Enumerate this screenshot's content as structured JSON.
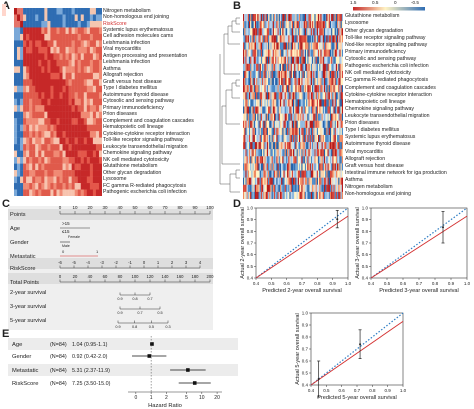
{
  "panels": {
    "A": {
      "letter": "A",
      "rows": [
        "Nitrogen metabolism",
        "Non-homologous end joining",
        "RiskScore",
        "Systemic lupus erythematosus",
        "Cell adhesion molecules cams",
        "Leishmania infection",
        "Viral myocarditis",
        "Antigen processing and presentation",
        "Leishmania infection",
        "Asthma",
        "Allograft rejection",
        "Graft versus host disease",
        "Type I diabetes mellitus",
        "Autoimmune thyroid disease",
        "Cytosolic and sensing pathway",
        "Primary immunodeficiency",
        "Prion diseases",
        "Complement and coagulation cascades",
        "Hematopoietic cell lineage",
        "Cytokine-cytokine receptor interaction",
        "Toll-like receptor signaling pathway",
        "Leukocyte transendothelial migration",
        "Chemokine signaling pathway",
        "NK cell mediated cytotoxicity",
        "Glutathione metabolism",
        "Other glycan degradation",
        "Lysosome",
        "FC gamma R-rediated phagocytosis",
        "Pathogenic escherichia coli infection"
      ],
      "highlight_row": "RiskScore",
      "colors": {
        "high": "#c62828",
        "low": "#1f5fa8",
        "mid": "#fbe3d4",
        "highlight": "#d32f2f"
      }
    },
    "B": {
      "letter": "B",
      "legend_ticks": [
        "1.5",
        "0.5",
        "0",
        "-0.5"
      ],
      "rows": [
        "Glutathione metabolism",
        "Lysosome",
        "Other glycan degradation",
        "Toll-like receptor signaling pathway",
        "Nod-like receptor signaling pathway",
        "Primary immunodeficiency",
        "Cytosolic and sensing pathway",
        "Pathogenic escherichia coli infection",
        "NK cell mediated cytotoxicity",
        "FC gamma R-rediated phagocytosis",
        "Complement and coagulation cascades",
        "Cytokine-cytokine receptor interaction",
        "Hematopoietic cell lineage",
        "Chemokine signaling pathway",
        "Leukocyte transendothelial migration",
        "Prion diseases",
        "Type I diabetes mellitus",
        "Systemic lupus erythematosus",
        "Autoimmune thyroid disease",
        "Viral myocarditis",
        "Allograft rejection",
        "Graft versus host disease",
        "Intestinal immune network for iga production",
        "Asthma",
        "Nitrogen metabolism",
        "Non-homologous end joining"
      ]
    },
    "C": {
      "letter": "C",
      "rows": [
        {
          "label": "Points",
          "ticks": [
            "0",
            "10",
            "20",
            "30",
            "40",
            "50",
            "60",
            "70",
            "80",
            "90",
            "100"
          ]
        },
        {
          "label": "Age",
          "ticks": [
            ">15",
            "≤15"
          ]
        },
        {
          "label": "Gender",
          "ticks": [
            "Female",
            "Male"
          ]
        },
        {
          "label": "Metastatic",
          "ticks": [
            "1",
            "0"
          ]
        },
        {
          "label": "RiskScore",
          "ticks": [
            "-6",
            "-5",
            "-4",
            "-3",
            "-2",
            "-1",
            "0",
            "1",
            "2",
            "3",
            "4"
          ]
        },
        {
          "label": "Total Points",
          "ticks": [
            "0",
            "20",
            "40",
            "60",
            "80",
            "100",
            "120",
            "140",
            "160",
            "180",
            "200"
          ]
        },
        {
          "label": "2-year survival",
          "ticks": [
            "0.9",
            "0.8",
            "0.7"
          ]
        },
        {
          "label": "3-year survival",
          "ticks": [
            "0.9",
            "0.7",
            "0.5"
          ]
        },
        {
          "label": "5-year survival",
          "ticks": [
            "0.9",
            "0.8",
            "0.5",
            "0.3"
          ]
        }
      ]
    },
    "D": {
      "letter": "D",
      "plots": [
        {
          "xlabel": "Predicted 2-year overall survival",
          "ylabel": "Actual 2-year overall survival",
          "ticks": [
            "0.4",
            "0.5",
            "0.6",
            "0.7",
            "0.8",
            "0.9",
            "1.0"
          ]
        },
        {
          "xlabel": "Predicted 3-year overall survival",
          "ylabel": "Actual 3-year overall survival",
          "ticks": [
            "0.4",
            "0.5",
            "0.6",
            "0.7",
            "0.8",
            "0.9",
            "1.0"
          ]
        },
        {
          "xlabel": "Predicted 5-year overall survival",
          "ylabel": "Actual 5-year overall survival",
          "ticks": [
            "0.4",
            "0.5",
            "0.6",
            "0.7",
            "0.8",
            "0.9",
            "1.0"
          ]
        }
      ],
      "colors": {
        "ideal": "#2e7dc4",
        "model": "#d32f2f",
        "err": "#222222"
      }
    },
    "E": {
      "letter": "E",
      "xlabel": "Hazard Ratio",
      "xticks": [
        "0",
        "1",
        "2",
        "5",
        "10",
        "20"
      ],
      "rows": [
        {
          "name": "Age",
          "n": "(N=84)",
          "hr": "1.04 (0.95-1.1)",
          "est": 1.04,
          "lo": 0.95,
          "hi": 1.1
        },
        {
          "name": "Gender",
          "n": "(N=84)",
          "hr": "0.92 (0.42-2.0)",
          "est": 0.92,
          "lo": 0.42,
          "hi": 2.0
        },
        {
          "name": "Metastatic",
          "n": "(N=84)",
          "hr": "5.31 (2.37-11.9)",
          "est": 5.31,
          "lo": 2.37,
          "hi": 11.9
        },
        {
          "name": "RiskScore",
          "n": "(N=84)",
          "hr": "7.25 (3.50-15.0)",
          "est": 7.25,
          "lo": 3.5,
          "hi": 15.0
        }
      ]
    }
  }
}
